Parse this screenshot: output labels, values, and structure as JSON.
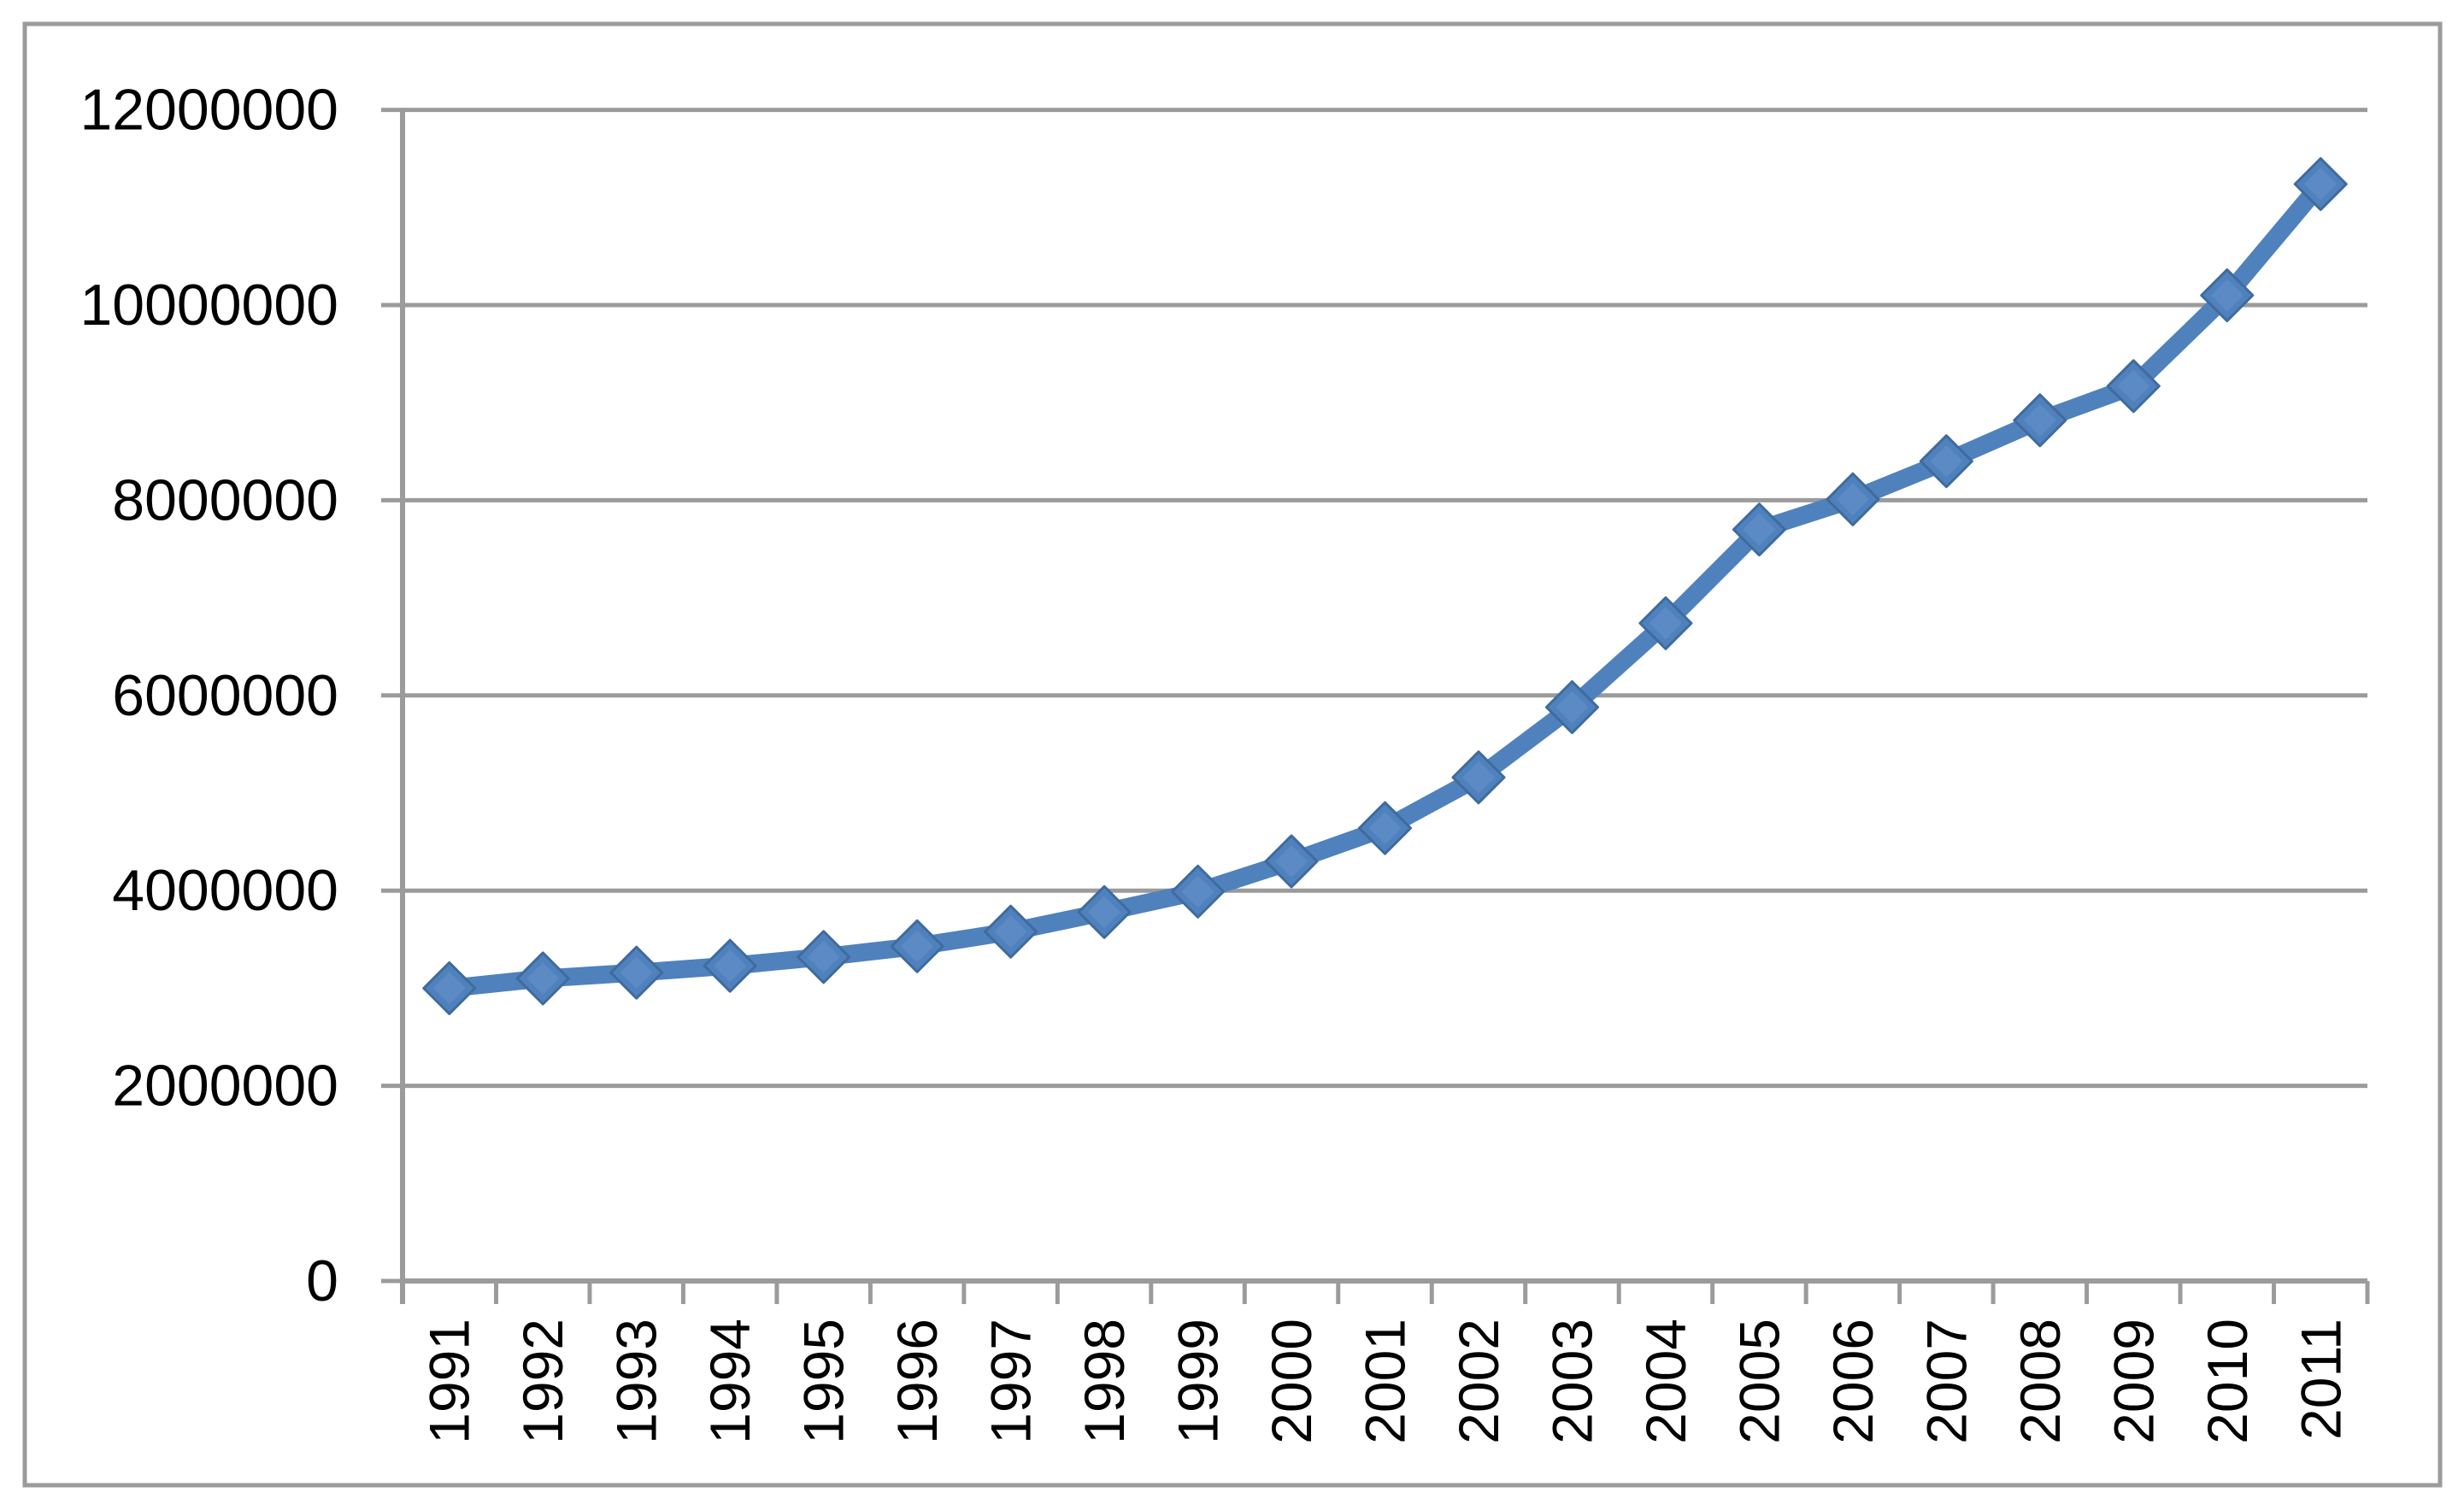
{
  "chart_data": {
    "type": "line",
    "title": "",
    "xlabel": "",
    "ylabel": "",
    "categories": [
      "1991",
      "1992",
      "1993",
      "1994",
      "1995",
      "1996",
      "1997",
      "1998",
      "1999",
      "2000",
      "2001",
      "2002",
      "2003",
      "2004",
      "2005",
      "2006",
      "2007",
      "2008",
      "2009",
      "2010",
      "2011"
    ],
    "series": [
      {
        "name": "",
        "values": [
          3000000,
          3100000,
          3160000,
          3230000,
          3320000,
          3430000,
          3580000,
          3780000,
          3990000,
          4300000,
          4640000,
          5160000,
          5880000,
          6740000,
          7700000,
          8010000,
          8400000,
          8820000,
          9170000,
          10100000,
          11240000
        ],
        "color": "#4f81bd",
        "marker": "diamond",
        "marker_edge_color": "#3f6b9d",
        "marker_inner_color": "#5d8cc5"
      }
    ],
    "ylim": [
      0,
      12000000
    ],
    "y_ticks": [
      0,
      2000000,
      4000000,
      6000000,
      8000000,
      10000000,
      12000000
    ],
    "y_tick_labels": [
      "0",
      "2000000",
      "4000000",
      "6000000",
      "8000000",
      "10000000",
      "12000000"
    ],
    "grid": "horizontal",
    "gridline_color": "#9b9b9b",
    "axis_color": "#9b9b9b",
    "border_color": "#9b9b9b",
    "tick_label_color": "#000000",
    "legend": "none",
    "x_label_rotation_degrees": -90
  }
}
